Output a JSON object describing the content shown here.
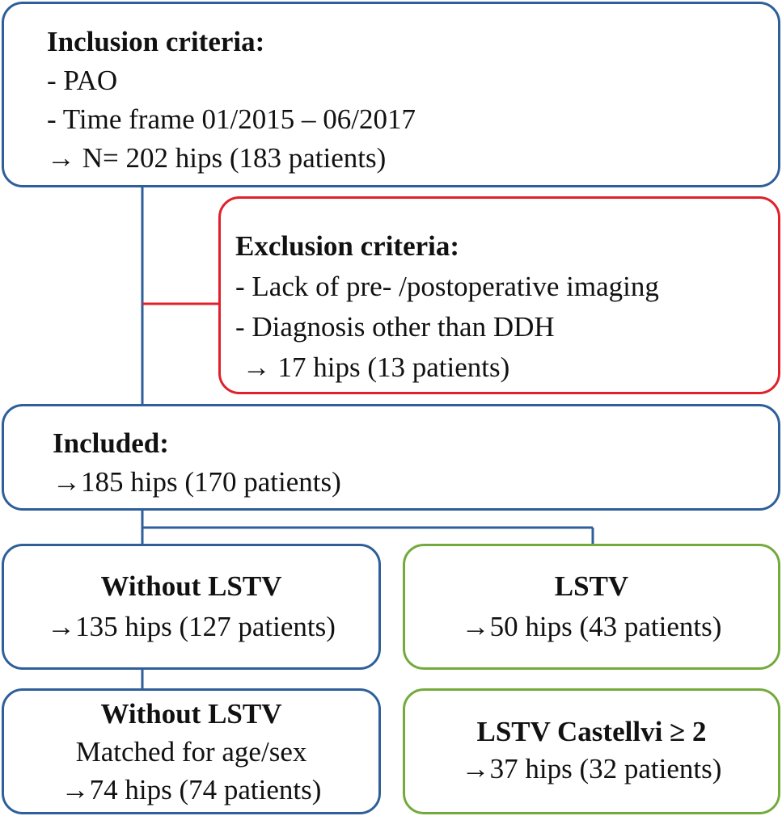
{
  "inclusion": {
    "title": "Inclusion criteria:",
    "items": [
      "- PAO",
      "- Time frame 01/2015 – 06/2017"
    ],
    "result": "→ N= 202 hips (183 patients)"
  },
  "exclusion": {
    "title": "Exclusion criteria:",
    "items": [
      "- Lack of pre- /postoperative imaging",
      "- Diagnosis other than DDH"
    ],
    "result": " → 17 hips (13 patients)"
  },
  "included": {
    "title": "Included:",
    "result": "→185 hips (170 patients)"
  },
  "without_lstv": {
    "title": "Without LSTV",
    "result": "→135 hips (127 patients)"
  },
  "lstv": {
    "title": "LSTV",
    "result": "→50 hips (43 patients)"
  },
  "without_lstv_matched": {
    "title": "Without LSTV",
    "subtitle": "Matched for age/sex",
    "result": "→74 hips (74 patients)"
  },
  "lstv_castellvi": {
    "title": "LSTV Castellvi ≥ 2",
    "result": "→37 hips (32 patients)"
  },
  "colors": {
    "blue": "#2e5f9a",
    "red": "#e0202a",
    "green": "#72ab3c"
  }
}
